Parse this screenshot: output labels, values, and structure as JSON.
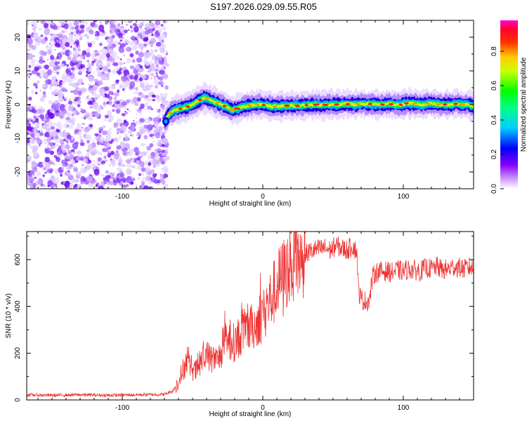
{
  "title": "S197.2026.029.09.55.R05",
  "chart_data": [
    {
      "type": "heatmap",
      "xlabel": "Height of straight line (km)",
      "ylabel": "Frequency (Hz)",
      "xlim": [
        -168,
        150
      ],
      "ylim": [
        -25,
        25
      ],
      "xticks": [
        -100,
        0,
        100
      ],
      "xtick_labels": [
        "-100",
        "0",
        "100"
      ],
      "yticks": [
        -20,
        -10,
        0,
        10,
        20
      ],
      "ytick_labels": [
        "-20",
        "-10",
        "0",
        "10",
        "20"
      ],
      "noise_region_x": [
        -168,
        -68
      ],
      "ridge": {
        "x": [
          -70,
          -66,
          -62,
          -58,
          -54,
          -50,
          -46,
          -42,
          -38,
          -34,
          -30,
          -26,
          -22,
          -18,
          -14,
          -10,
          -6,
          -2,
          2,
          6,
          10,
          14,
          18,
          22,
          26,
          30,
          34,
          38,
          42,
          46,
          50,
          54,
          58,
          62,
          66,
          70,
          74,
          78,
          82,
          86,
          90,
          94,
          98,
          102,
          106,
          110,
          114,
          118,
          122,
          126,
          130,
          134,
          138,
          142,
          146,
          150
        ],
        "frequency": [
          -5,
          -2.5,
          -1.5,
          -1.2,
          -0.7,
          0,
          1,
          2,
          1.5,
          0.7,
          0,
          -0.6,
          -1.6,
          -1.2,
          -0.6,
          -0.3,
          0,
          0.1,
          -0.2,
          -0.5,
          -0.6,
          -0.5,
          -0.3,
          -0.4,
          -0.3,
          -0.2,
          -0.1,
          0,
          -0.2,
          0,
          0,
          0,
          0.2,
          0.1,
          0,
          0.3,
          0.1,
          0.2,
          0,
          0,
          0.2,
          0,
          -0.1,
          0.4,
          0.3,
          0.2,
          0,
          0.4,
          0.2,
          0,
          0,
          0,
          0.3,
          0,
          0,
          -0.6
        ]
      },
      "colorbar": {
        "label": "Normalized spectral amplitude",
        "range": [
          0,
          0.98
        ],
        "ticks": [
          0,
          0.2,
          0.4,
          0.6,
          0.8
        ],
        "tick_labels": [
          "0.0",
          "0.2",
          "0.4",
          "0.6",
          "0.8"
        ],
        "colormap": "rainbow (white, violet, blue, cyan, green, yellow, red, magenta)"
      }
    },
    {
      "type": "line",
      "xlabel": "Height of straight line (km)",
      "ylabel": "SNR (10 * v/v)",
      "xlim": [
        -168,
        150
      ],
      "ylim": [
        0,
        720
      ],
      "xticks": [
        -100,
        0,
        100
      ],
      "xtick_labels": [
        "-100",
        "0",
        "100"
      ],
      "yticks": [
        0,
        200,
        400,
        600
      ],
      "ytick_labels": [
        "0",
        "200",
        "400",
        "600"
      ],
      "color": "#ee3333",
      "series": [
        {
          "name": "SNR",
          "x": [
            -168,
            -150,
            -130,
            -110,
            -90,
            -70,
            -64,
            -60,
            -56,
            -52,
            -48,
            -44,
            -40,
            -36,
            -32,
            -28,
            -24,
            -20,
            -16,
            -12,
            -8,
            -4,
            0,
            4,
            8,
            12,
            16,
            20,
            24,
            28,
            32,
            36,
            40,
            44,
            48,
            52,
            56,
            60,
            64,
            67,
            68,
            70,
            72,
            74,
            76,
            78,
            80,
            84,
            88,
            92,
            96,
            100,
            104,
            108,
            112,
            116,
            120,
            124,
            128,
            132,
            136,
            140,
            144,
            148,
            150
          ],
          "values": [
            22,
            20,
            22,
            20,
            22,
            24,
            38,
            80,
            140,
            150,
            120,
            165,
            190,
            175,
            170,
            230,
            250,
            245,
            275,
            300,
            310,
            330,
            380,
            410,
            460,
            510,
            545,
            570,
            595,
            610,
            630,
            640,
            645,
            650,
            640,
            660,
            650,
            640,
            660,
            630,
            470,
            430,
            425,
            420,
            430,
            520,
            545,
            550,
            550,
            545,
            555,
            550,
            560,
            555,
            550,
            565,
            560,
            570,
            555,
            560,
            570,
            565,
            560,
            570,
            560
          ]
        }
      ]
    }
  ]
}
